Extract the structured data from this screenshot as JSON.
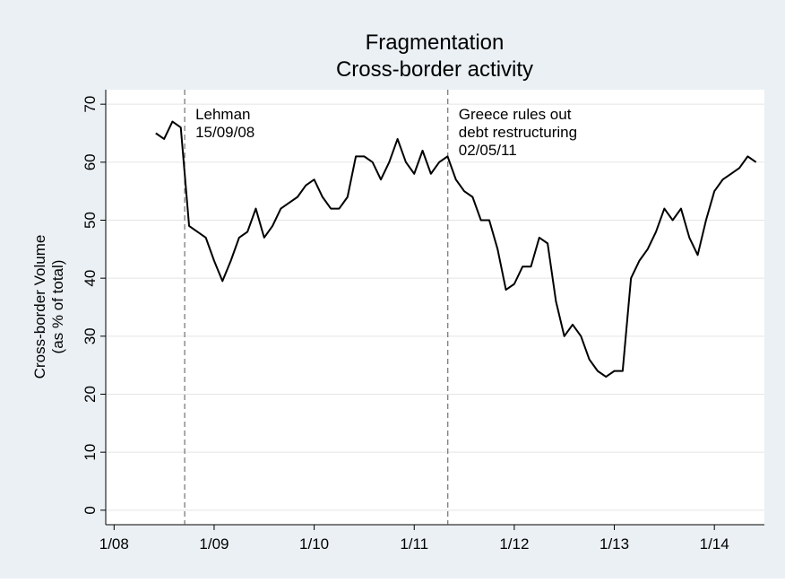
{
  "chart_data": {
    "type": "line",
    "title": "Fragmentation",
    "subtitle": "Cross-border activity",
    "y_label": [
      "Cross-border Volume",
      "(as % of total)"
    ],
    "x": [
      "2008-06",
      "2008-07",
      "2008-08",
      "2008-09",
      "2008-10",
      "2008-11",
      "2008-12",
      "2009-01",
      "2009-02",
      "2009-03",
      "2009-04",
      "2009-05",
      "2009-06",
      "2009-07",
      "2009-08",
      "2009-09",
      "2009-10",
      "2009-11",
      "2009-12",
      "2010-01",
      "2010-02",
      "2010-03",
      "2010-04",
      "2010-05",
      "2010-06",
      "2010-07",
      "2010-08",
      "2010-09",
      "2010-10",
      "2010-11",
      "2010-12",
      "2011-01",
      "2011-02",
      "2011-03",
      "2011-04",
      "2011-05",
      "2011-06",
      "2011-07",
      "2011-08",
      "2011-09",
      "2011-10",
      "2011-11",
      "2011-12",
      "2012-01",
      "2012-02",
      "2012-03",
      "2012-04",
      "2012-05",
      "2012-06",
      "2012-07",
      "2012-08",
      "2012-09",
      "2012-10",
      "2012-11",
      "2012-12",
      "2013-01",
      "2013-02",
      "2013-03",
      "2013-04",
      "2013-05",
      "2013-06",
      "2013-07",
      "2013-08",
      "2013-09",
      "2013-10",
      "2013-11",
      "2013-12",
      "2014-01",
      "2014-02",
      "2014-03",
      "2014-04",
      "2014-05",
      "2014-06"
    ],
    "series": [
      {
        "color": "#000000",
        "values": [
          65,
          64,
          67,
          66,
          49,
          48,
          47,
          43,
          39.5,
          43,
          47,
          48,
          52,
          47,
          49,
          52,
          53,
          54,
          56,
          57,
          54,
          52,
          52,
          54,
          61,
          61,
          60,
          57,
          60,
          64,
          60,
          58,
          62,
          58,
          60,
          61,
          57,
          55,
          54,
          50,
          50,
          45,
          38,
          39,
          42,
          42,
          47,
          46,
          36,
          30,
          32,
          30,
          26,
          24,
          23,
          24,
          24,
          40,
          43,
          45,
          48,
          52,
          50,
          52,
          47,
          44,
          50,
          55,
          57,
          58,
          59,
          61,
          60
        ]
      }
    ],
    "xlim": [
      "2007-12",
      "2014-07"
    ],
    "xticks": [
      {
        "value": "2008-01",
        "label": "1/08"
      },
      {
        "value": "2009-01",
        "label": "1/09"
      },
      {
        "value": "2010-01",
        "label": "1/10"
      },
      {
        "value": "2011-01",
        "label": "1/11"
      },
      {
        "value": "2012-01",
        "label": "1/12"
      },
      {
        "value": "2013-01",
        "label": "1/13"
      },
      {
        "value": "2014-01",
        "label": "1/14"
      }
    ],
    "ylim": [
      -2.5,
      72.5
    ],
    "yticks": [
      0,
      10,
      20,
      30,
      40,
      50,
      60,
      70
    ],
    "grid": true,
    "annotations": [
      {
        "x": "2008-09-15",
        "lines": [
          "Lehman",
          "15/09/08"
        ]
      },
      {
        "x": "2011-05-02",
        "lines": [
          "Greece rules out",
          "debt restructuring",
          "02/05/11"
        ]
      }
    ]
  }
}
